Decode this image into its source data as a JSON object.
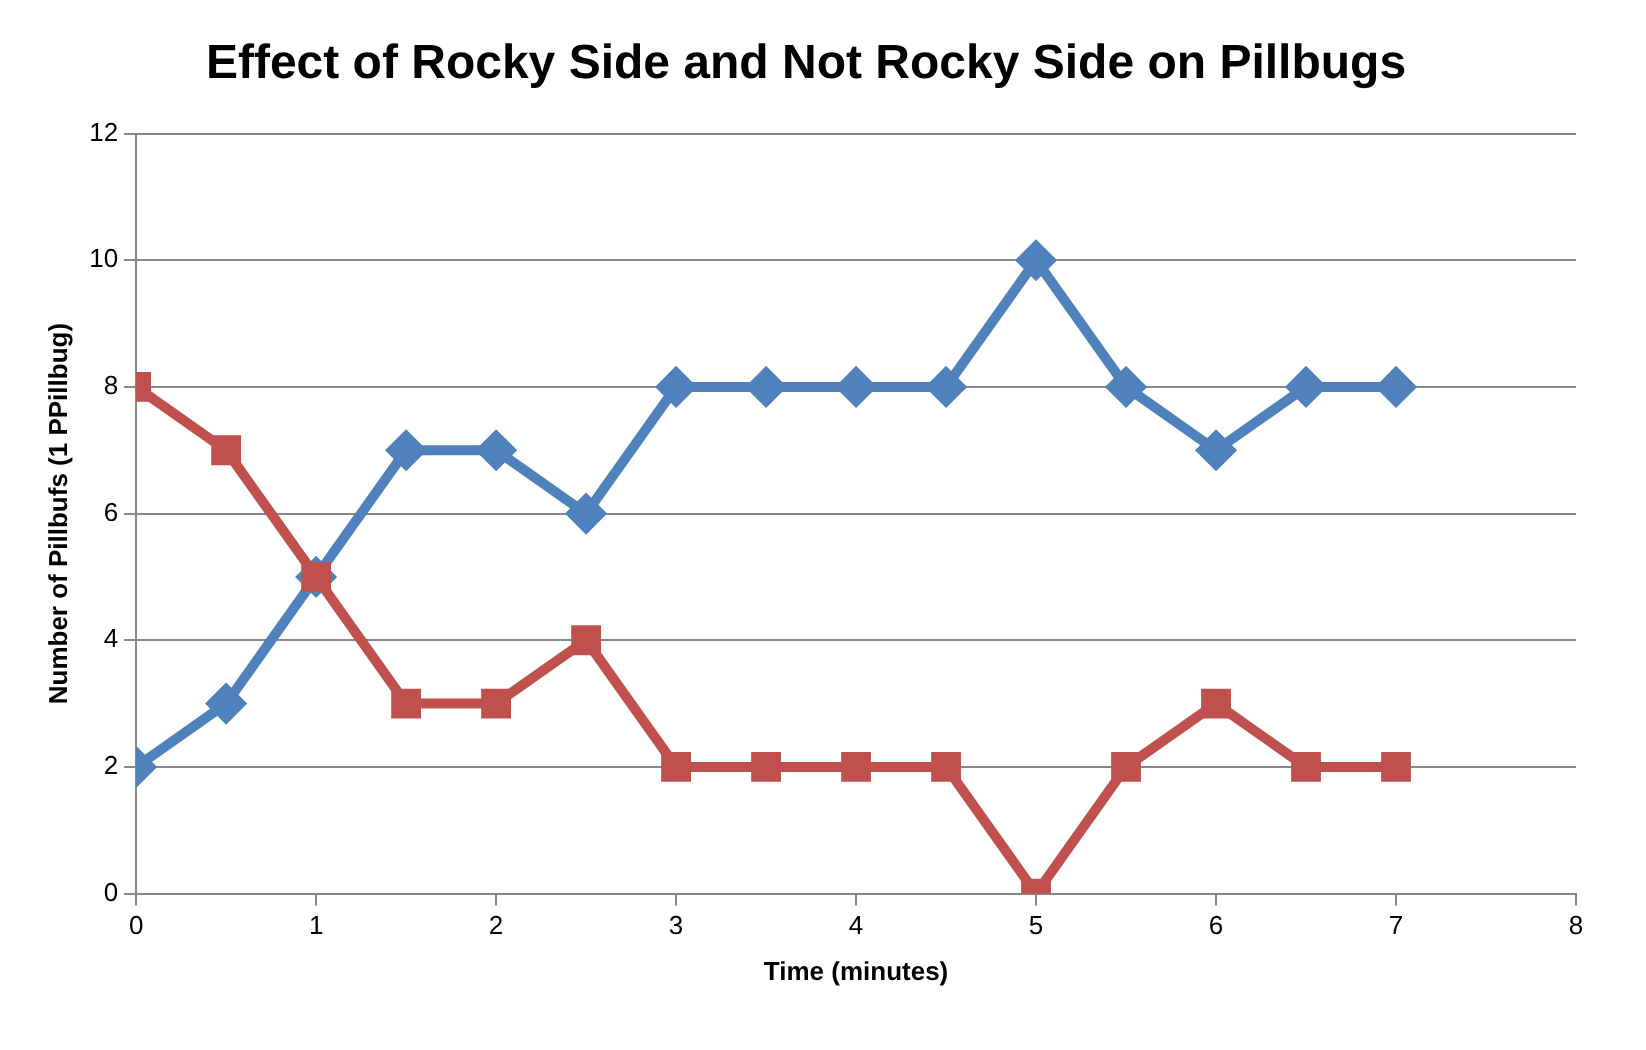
{
  "chart_data": {
    "type": "line",
    "title": "Effect of Rocky Side and Not Rocky Side on Pillbugs",
    "xlabel": "Time (minutes)",
    "ylabel": "Number of Pillbufs (1 PPillbug)",
    "x": [
      0,
      0.5,
      1,
      1.5,
      2,
      2.5,
      3,
      3.5,
      4,
      4.5,
      5,
      5.5,
      6,
      6.5,
      7
    ],
    "series": [
      {
        "color": "#4f81bd",
        "marker": "diamond",
        "values": [
          2,
          3,
          5,
          7,
          7,
          6,
          8,
          8,
          8,
          8,
          10,
          8,
          7,
          8,
          8
        ]
      },
      {
        "color": "#c0504d",
        "marker": "square",
        "values": [
          8,
          7,
          5,
          3,
          3,
          4,
          2,
          2,
          2,
          2,
          0,
          2,
          3,
          2,
          2
        ]
      }
    ],
    "xlim": [
      0,
      8
    ],
    "xticks": [
      0,
      1,
      2,
      3,
      4,
      5,
      6,
      7,
      8
    ],
    "ylim": [
      0,
      12
    ],
    "yticks": [
      0,
      2,
      4,
      6,
      8,
      10,
      12
    ],
    "grid": "y",
    "legend": false
  }
}
